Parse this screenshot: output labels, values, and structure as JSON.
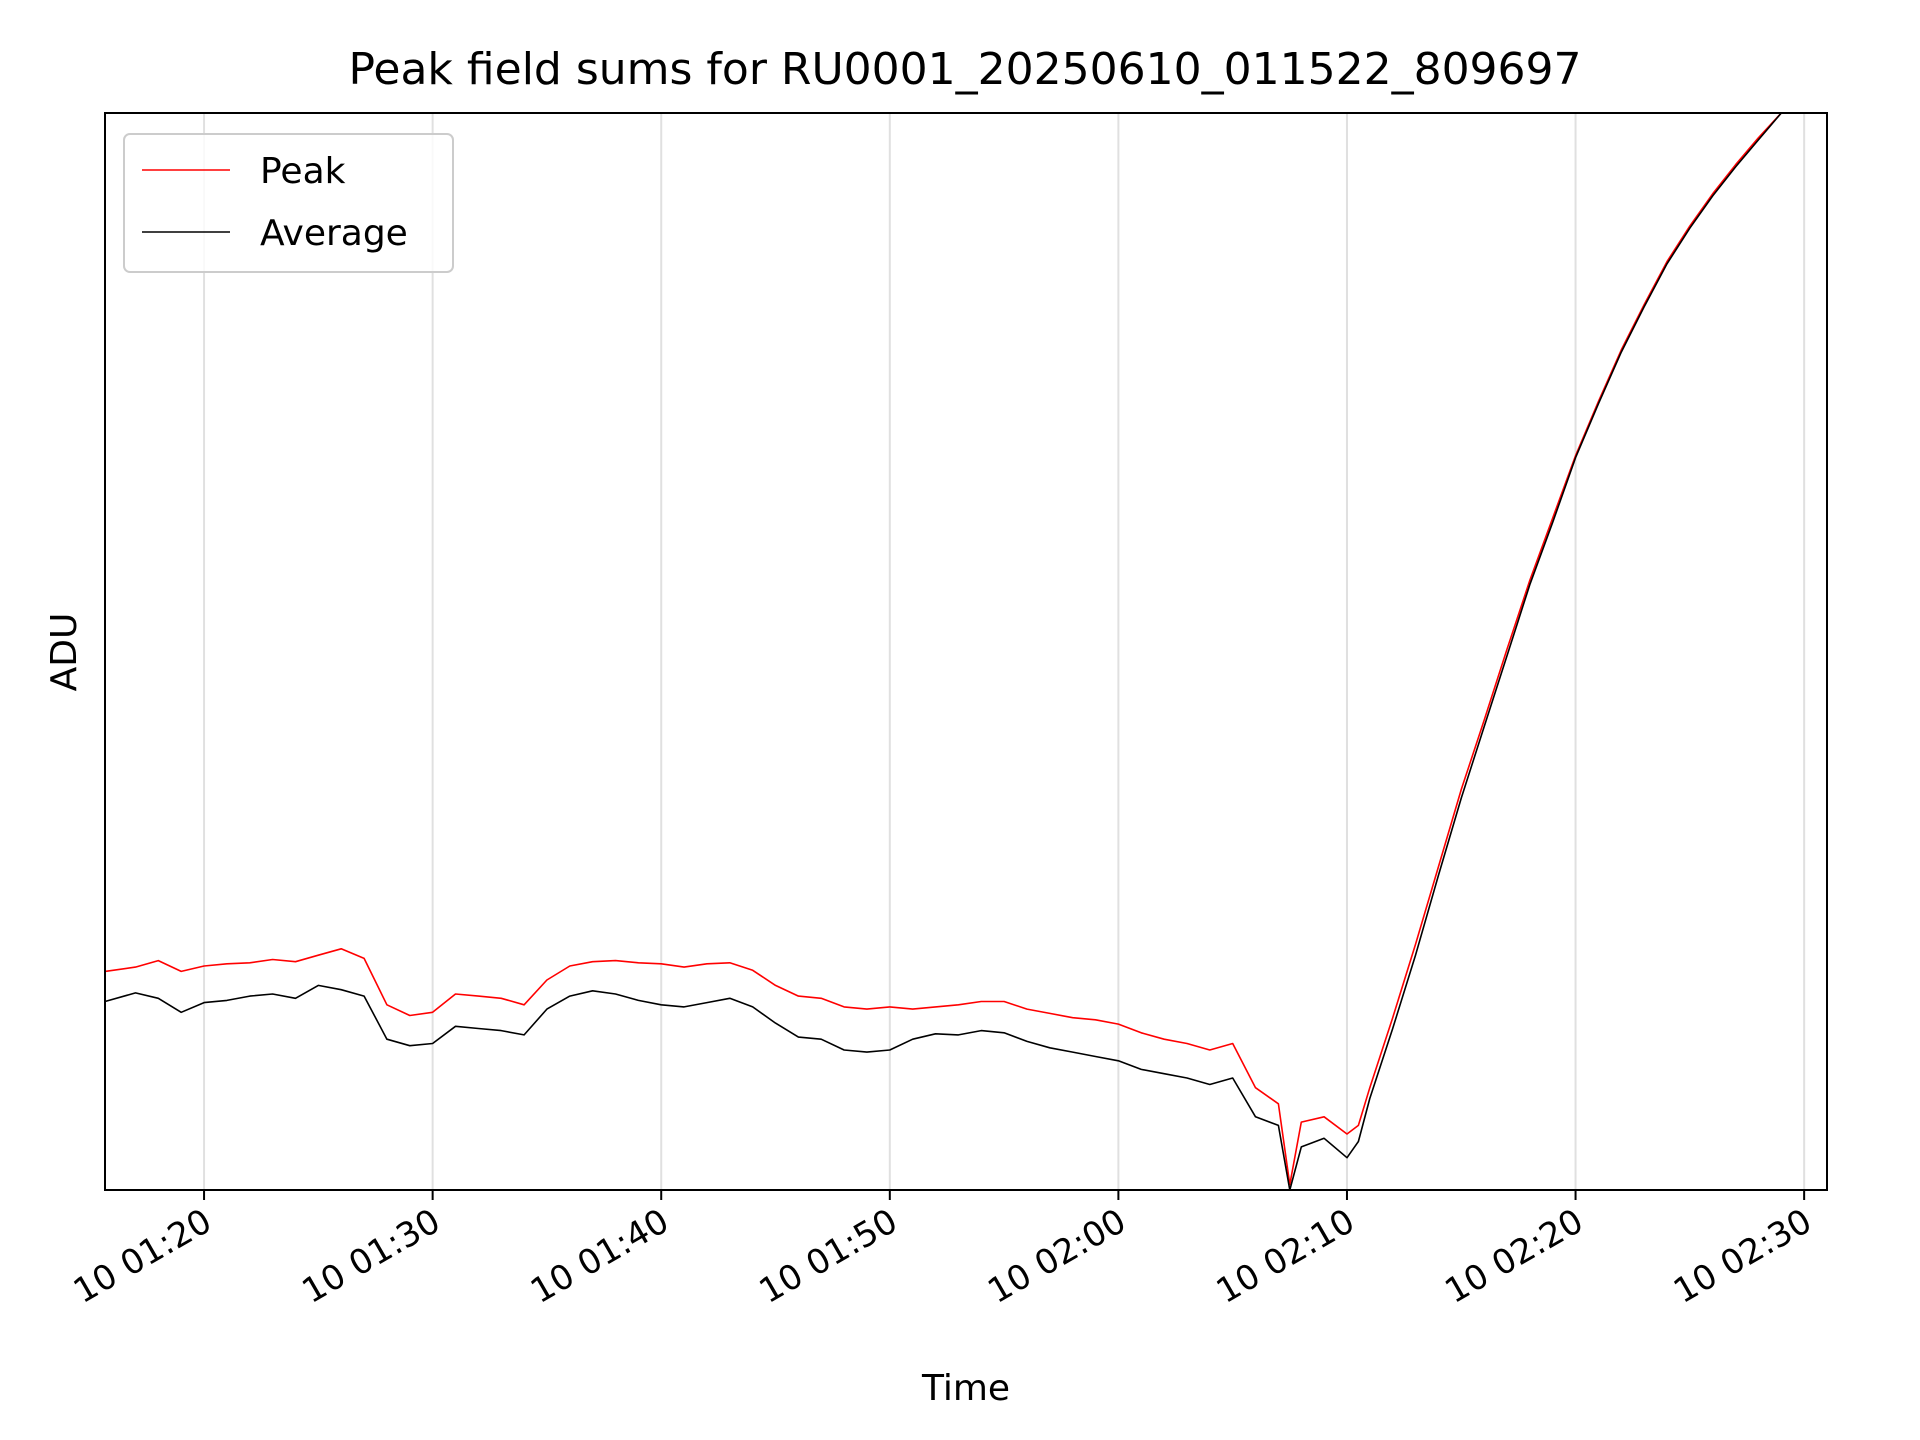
{
  "chart_data": {
    "type": "line",
    "title": "Peak field sums for RU0001_20250610_011522_809697",
    "xlabel": "Time",
    "ylabel": "ADU",
    "x_axis": {
      "kind": "time",
      "range": [
        "2025-06-10 01:15:40",
        "2025-06-10 02:30:60"
      ],
      "ticks": [
        "2025-06-10 01:20",
        "2025-06-10 01:30",
        "2025-06-10 01:40",
        "2025-06-10 01:50",
        "2025-06-10 02:00",
        "2025-06-10 02:10",
        "2025-06-10 02:20",
        "2025-06-10 02:30"
      ],
      "tick_labels": [
        "10 01:20",
        "10 01:30",
        "10 01:40",
        "10 01:50",
        "10 02:00",
        "10 02:10",
        "10 02:20",
        "10 02:30"
      ],
      "tick_label_rotation_deg": 30
    },
    "y_axis": {
      "range": [
        0,
        1
      ],
      "tick_labels": [],
      "note_scale": "relative"
    },
    "grid": {
      "x": true,
      "y": false,
      "color": "#e0e0e0"
    },
    "legend": {
      "placement": "top-left",
      "entries": [
        "Peak",
        "Average"
      ]
    },
    "series": [
      {
        "name": "Peak",
        "color": "#ff0000",
        "x": [
          "01:15:40",
          "01:17:00",
          "01:18:00",
          "01:19:00",
          "01:20:00",
          "01:21:00",
          "01:22:00",
          "01:23:00",
          "01:24:00",
          "01:25:00",
          "01:26:00",
          "01:27:00",
          "01:28:00",
          "01:29:00",
          "01:30:00",
          "01:31:00",
          "01:32:00",
          "01:33:00",
          "01:34:00",
          "01:35:00",
          "01:36:00",
          "01:37:00",
          "01:38:00",
          "01:39:00",
          "01:40:00",
          "01:41:00",
          "01:42:00",
          "01:43:00",
          "01:44:00",
          "01:45:00",
          "01:46:00",
          "01:47:00",
          "01:48:00",
          "01:49:00",
          "01:50:00",
          "01:51:00",
          "01:52:00",
          "01:53:00",
          "01:54:00",
          "01:55:00",
          "01:56:00",
          "01:57:00",
          "01:58:00",
          "01:59:00",
          "02:00:00",
          "02:01:00",
          "02:02:00",
          "02:03:00",
          "02:04:00",
          "02:05:00",
          "02:06:00",
          "02:07:00",
          "02:07:30",
          "02:08:00",
          "02:09:00",
          "02:10:00",
          "02:10:30",
          "02:11:00",
          "02:12:00",
          "02:13:00",
          "02:14:00",
          "02:15:00",
          "02:16:00",
          "02:17:00",
          "02:18:00",
          "02:19:00",
          "02:20:00",
          "02:21:00",
          "02:22:00",
          "02:23:00",
          "02:24:00",
          "02:25:00",
          "02:26:00",
          "02:27:00",
          "02:28:00",
          "02:29:00",
          "02:30:00",
          "02:31:00"
        ],
        "values": [
          0.203,
          0.207,
          0.213,
          0.203,
          0.208,
          0.21,
          0.211,
          0.214,
          0.212,
          0.218,
          0.224,
          0.215,
          0.172,
          0.162,
          0.165,
          0.182,
          0.18,
          0.178,
          0.172,
          0.195,
          0.208,
          0.212,
          0.213,
          0.211,
          0.21,
          0.207,
          0.21,
          0.211,
          0.204,
          0.19,
          0.18,
          0.178,
          0.17,
          0.168,
          0.17,
          0.168,
          0.17,
          0.172,
          0.175,
          0.175,
          0.168,
          0.164,
          0.16,
          0.158,
          0.154,
          0.146,
          0.14,
          0.136,
          0.13,
          0.136,
          0.095,
          0.08,
          0.005,
          0.063,
          0.068,
          0.052,
          0.06,
          0.095,
          0.16,
          0.228,
          0.3,
          0.372,
          0.436,
          0.502,
          0.566,
          0.624,
          0.682,
          0.732,
          0.78,
          0.822,
          0.862,
          0.895,
          0.925,
          0.952,
          0.977,
          1.0,
          1.0,
          1.0
        ]
      },
      {
        "name": "Average",
        "color": "#000000",
        "x": [
          "01:15:40",
          "01:17:00",
          "01:18:00",
          "01:19:00",
          "01:20:00",
          "01:21:00",
          "01:22:00",
          "01:23:00",
          "01:24:00",
          "01:25:00",
          "01:26:00",
          "01:27:00",
          "01:28:00",
          "01:29:00",
          "01:30:00",
          "01:31:00",
          "01:32:00",
          "01:33:00",
          "01:34:00",
          "01:35:00",
          "01:36:00",
          "01:37:00",
          "01:38:00",
          "01:39:00",
          "01:40:00",
          "01:41:00",
          "01:42:00",
          "01:43:00",
          "01:44:00",
          "01:45:00",
          "01:46:00",
          "01:47:00",
          "01:48:00",
          "01:49:00",
          "01:50:00",
          "01:51:00",
          "01:52:00",
          "01:53:00",
          "01:54:00",
          "01:55:00",
          "01:56:00",
          "01:57:00",
          "01:58:00",
          "01:59:00",
          "02:00:00",
          "02:01:00",
          "02:02:00",
          "02:03:00",
          "02:04:00",
          "02:05:00",
          "02:06:00",
          "02:07:00",
          "02:07:30",
          "02:08:00",
          "02:09:00",
          "02:10:00",
          "02:10:30",
          "02:11:00",
          "02:12:00",
          "02:13:00",
          "02:14:00",
          "02:15:00",
          "02:16:00",
          "02:17:00",
          "02:18:00",
          "02:19:00",
          "02:20:00",
          "02:21:00",
          "02:22:00",
          "02:23:00",
          "02:24:00",
          "02:25:00",
          "02:26:00",
          "02:27:00",
          "02:28:00",
          "02:29:00",
          "02:30:00",
          "02:31:00"
        ],
        "values": [
          0.175,
          0.183,
          0.178,
          0.165,
          0.174,
          0.176,
          0.18,
          0.182,
          0.178,
          0.19,
          0.186,
          0.18,
          0.14,
          0.134,
          0.136,
          0.152,
          0.15,
          0.148,
          0.144,
          0.168,
          0.18,
          0.185,
          0.182,
          0.176,
          0.172,
          0.17,
          0.174,
          0.178,
          0.17,
          0.155,
          0.142,
          0.14,
          0.13,
          0.128,
          0.13,
          0.14,
          0.145,
          0.144,
          0.148,
          0.146,
          0.138,
          0.132,
          0.128,
          0.124,
          0.12,
          0.112,
          0.108,
          0.104,
          0.098,
          0.104,
          0.068,
          0.06,
          0.0,
          0.04,
          0.048,
          0.03,
          0.045,
          0.085,
          0.15,
          0.218,
          0.292,
          0.364,
          0.43,
          0.496,
          0.562,
          0.62,
          0.68,
          0.73,
          0.778,
          0.82,
          0.86,
          0.893,
          0.923,
          0.95,
          0.975,
          1.0,
          1.0,
          1.0
        ]
      }
    ]
  }
}
